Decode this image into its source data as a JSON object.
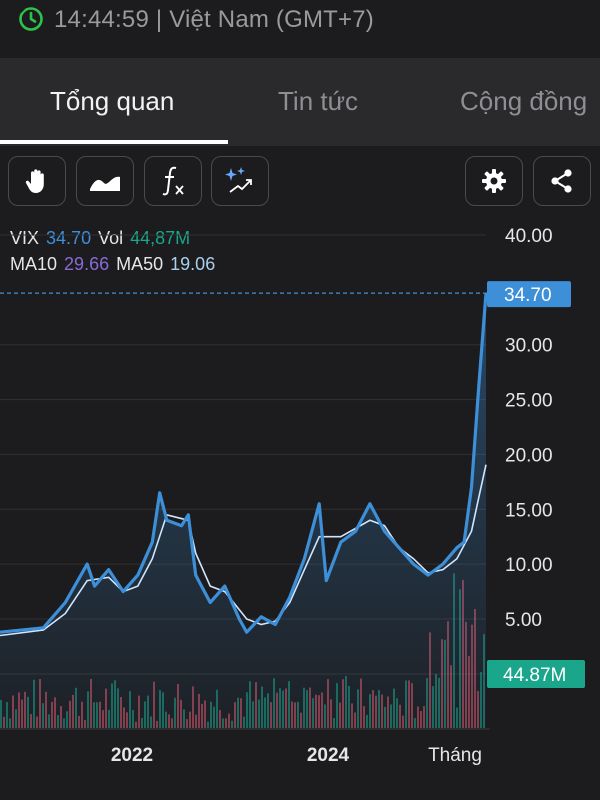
{
  "status": {
    "time_zone": "14:44:59 | Việt Nam (GMT+7)"
  },
  "tabs": [
    {
      "label": "Tổng quan",
      "active": true
    },
    {
      "label": "Tin tức",
      "active": false
    },
    {
      "label": "Cộng đồng",
      "active": false
    }
  ],
  "toolbar": {
    "left": [
      "hand-icon",
      "area-chart-icon",
      "function-icon",
      "magic-wand-icon"
    ],
    "right": [
      "gear-icon",
      "share-icon"
    ]
  },
  "legend": {
    "symbol": "VIX",
    "price": "34.70",
    "vol_label": "Vol",
    "vol_value": "44,87M",
    "ma10_label": "MA10",
    "ma10_value": "29.66",
    "ma50_label": "MA50",
    "ma50_value": "19.06"
  },
  "colors": {
    "price_line": "#3d8fd8",
    "ma_line": "#cfe6ff",
    "volume_up": "#1aa68a",
    "volume_down": "#e0566a",
    "price_tag": "#3d8fd8",
    "volume_tag": "#1aa68a"
  },
  "chart_data": {
    "type": "line",
    "y_ticks": [
      "40.00",
      "30.00",
      "25.00",
      "20.00",
      "15.00",
      "10.00",
      "5.00"
    ],
    "x_ticks": [
      "2022",
      "2024",
      "Tháng"
    ],
    "ylim": [
      0,
      42
    ],
    "last_price_label": "34.70",
    "last_volume_label": "44.87M",
    "price_series": [
      {
        "x": "2020-01",
        "y": 3.8
      },
      {
        "x": "2020-07",
        "y": 4.2
      },
      {
        "x": "2020-10",
        "y": 6.5
      },
      {
        "x": "2021-01",
        "y": 10.0
      },
      {
        "x": "2021-02",
        "y": 8.0
      },
      {
        "x": "2021-04",
        "y": 9.5
      },
      {
        "x": "2021-06",
        "y": 7.5
      },
      {
        "x": "2021-08",
        "y": 9.0
      },
      {
        "x": "2021-10",
        "y": 12.0
      },
      {
        "x": "2021-11",
        "y": 16.5
      },
      {
        "x": "2021-12",
        "y": 14.0
      },
      {
        "x": "2022-02",
        "y": 13.5
      },
      {
        "x": "2022-03",
        "y": 14.5
      },
      {
        "x": "2022-04",
        "y": 9.0
      },
      {
        "x": "2022-06",
        "y": 6.5
      },
      {
        "x": "2022-08",
        "y": 8.0
      },
      {
        "x": "2022-10",
        "y": 5.0
      },
      {
        "x": "2022-11",
        "y": 3.8
      },
      {
        "x": "2023-01",
        "y": 5.2
      },
      {
        "x": "2023-03",
        "y": 4.5
      },
      {
        "x": "2023-05",
        "y": 7.0
      },
      {
        "x": "2023-07",
        "y": 10.5
      },
      {
        "x": "2023-09",
        "y": 15.5
      },
      {
        "x": "2023-10",
        "y": 8.5
      },
      {
        "x": "2023-12",
        "y": 12.0
      },
      {
        "x": "2024-02",
        "y": 13.0
      },
      {
        "x": "2024-04",
        "y": 15.5
      },
      {
        "x": "2024-06",
        "y": 13.0
      },
      {
        "x": "2024-08",
        "y": 11.5
      },
      {
        "x": "2024-10",
        "y": 10.0
      },
      {
        "x": "2024-12",
        "y": 9.0
      },
      {
        "x": "2025-02",
        "y": 10.0
      },
      {
        "x": "2025-04",
        "y": 11.5
      },
      {
        "x": "2025-05",
        "y": 12.0
      },
      {
        "x": "2025-06",
        "y": 17.0
      },
      {
        "x": "2025-07",
        "y": 26.0
      },
      {
        "x": "2025-08",
        "y": 34.7
      }
    ],
    "ma_series": [
      {
        "x": "2020-01",
        "y": 3.5
      },
      {
        "x": "2020-07",
        "y": 4.0
      },
      {
        "x": "2020-10",
        "y": 5.5
      },
      {
        "x": "2021-01",
        "y": 8.5
      },
      {
        "x": "2021-04",
        "y": 8.8
      },
      {
        "x": "2021-06",
        "y": 7.5
      },
      {
        "x": "2021-08",
        "y": 8.0
      },
      {
        "x": "2021-10",
        "y": 10.5
      },
      {
        "x": "2021-12",
        "y": 14.5
      },
      {
        "x": "2022-03",
        "y": 14.0
      },
      {
        "x": "2022-04",
        "y": 11.0
      },
      {
        "x": "2022-06",
        "y": 8.0
      },
      {
        "x": "2022-08",
        "y": 7.5
      },
      {
        "x": "2022-11",
        "y": 5.0
      },
      {
        "x": "2023-01",
        "y": 4.5
      },
      {
        "x": "2023-03",
        "y": 4.8
      },
      {
        "x": "2023-05",
        "y": 6.5
      },
      {
        "x": "2023-07",
        "y": 9.5
      },
      {
        "x": "2023-09",
        "y": 12.5
      },
      {
        "x": "2023-12",
        "y": 12.5
      },
      {
        "x": "2024-04",
        "y": 14.0
      },
      {
        "x": "2024-06",
        "y": 13.5
      },
      {
        "x": "2024-08",
        "y": 11.5
      },
      {
        "x": "2024-10",
        "y": 10.5
      },
      {
        "x": "2024-12",
        "y": 9.2
      },
      {
        "x": "2025-02",
        "y": 9.5
      },
      {
        "x": "2025-04",
        "y": 10.5
      },
      {
        "x": "2025-06",
        "y": 13.0
      },
      {
        "x": "2025-07",
        "y": 16.0
      },
      {
        "x": "2025-08",
        "y": 19.06
      }
    ]
  }
}
